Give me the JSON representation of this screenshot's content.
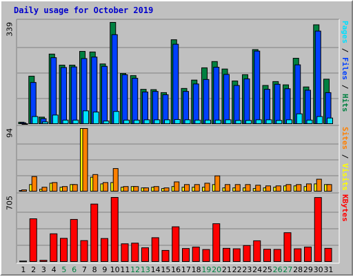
{
  "title": "Daily usage for October 2019",
  "colors": {
    "background": "#c0c0c0",
    "hits": "#008040",
    "files": "#0040ff",
    "pages": "#00e0ff",
    "visits": "#ffff00",
    "sites": "#ff8000",
    "kbytes": "#ff0000",
    "weekday_label": "#000000",
    "weekend_label": "#008040",
    "title": "#0000cc"
  },
  "chart_data": [
    {
      "type": "bar",
      "panel": "top",
      "ymax_label": "339",
      "ylim": [
        0,
        339
      ],
      "categories": [
        "1",
        "2",
        "3",
        "4",
        "5",
        "6",
        "7",
        "8",
        "9",
        "10",
        "11",
        "12",
        "13",
        "14",
        "15",
        "16",
        "17",
        "18",
        "19",
        "20",
        "21",
        "22",
        "23",
        "24",
        "25",
        "26",
        "27",
        "28",
        "29",
        "30",
        "31"
      ],
      "series": [
        {
          "name": "Hits",
          "values": [
            5,
            159,
            22,
            233,
            196,
            196,
            242,
            240,
            200,
            339,
            168,
            161,
            115,
            114,
            104,
            281,
            118,
            146,
            187,
            208,
            183,
            143,
            164,
            248,
            128,
            141,
            130,
            219,
            123,
            331,
            149
          ]
        },
        {
          "name": "Files",
          "values": [
            3,
            138,
            17,
            221,
            188,
            190,
            218,
            223,
            192,
            298,
            164,
            152,
            106,
            108,
            97,
            266,
            108,
            133,
            148,
            189,
            165,
            128,
            150,
            243,
            115,
            132,
            117,
            197,
            112,
            310,
            104
          ]
        },
        {
          "name": "Pages",
          "values": [
            0,
            24,
            6,
            29,
            12,
            12,
            43,
            39,
            9,
            41,
            12,
            12,
            13,
            13,
            13,
            14,
            13,
            12,
            12,
            12,
            13,
            11,
            11,
            13,
            13,
            11,
            13,
            33,
            12,
            24,
            19
          ]
        }
      ],
      "legend_words": [
        "Pages",
        "Files",
        "Hits"
      ]
    },
    {
      "type": "bar",
      "panel": "middle",
      "ymax_label": "94",
      "ylim": [
        0,
        94
      ],
      "categories": [
        "1",
        "2",
        "3",
        "4",
        "5",
        "6",
        "7",
        "8",
        "9",
        "10",
        "11",
        "12",
        "13",
        "14",
        "15",
        "16",
        "17",
        "18",
        "19",
        "20",
        "21",
        "22",
        "23",
        "24",
        "25",
        "26",
        "27",
        "28",
        "29",
        "30",
        "31"
      ],
      "series": [
        {
          "name": "Visits",
          "values": [
            1,
            10,
            3,
            12,
            6,
            10,
            94,
            21,
            11,
            13,
            6,
            7,
            5,
            6,
            4,
            7,
            6,
            6,
            6,
            10,
            5,
            5,
            5,
            4,
            5,
            6,
            8,
            8,
            7,
            11,
            10
          ]
        },
        {
          "name": "Sites",
          "values": [
            2,
            22,
            6,
            13,
            7,
            10,
            94,
            25,
            13,
            34,
            7,
            7,
            5,
            7,
            5,
            14,
            10,
            10,
            12,
            23,
            10,
            10,
            10,
            9,
            8,
            8,
            10,
            10,
            11,
            18,
            10
          ]
        }
      ],
      "legend_words": [
        "Sites",
        "Visits"
      ]
    },
    {
      "type": "bar",
      "panel": "bottom",
      "ymax_label": "705",
      "ylim": [
        0,
        705
      ],
      "categories": [
        "1",
        "2",
        "3",
        "4",
        "5",
        "6",
        "7",
        "8",
        "9",
        "10",
        "11",
        "12",
        "13",
        "14",
        "15",
        "16",
        "17",
        "18",
        "19",
        "20",
        "21",
        "22",
        "23",
        "24",
        "25",
        "26",
        "27",
        "28",
        "29",
        "30",
        "31"
      ],
      "series": [
        {
          "name": "KBytes",
          "values": [
            5,
            470,
            13,
            305,
            255,
            463,
            230,
            632,
            253,
            705,
            195,
            202,
            151,
            262,
            122,
            382,
            143,
            159,
            132,
            416,
            145,
            140,
            176,
            228,
            135,
            133,
            317,
            140,
            159,
            704,
            145
          ]
        }
      ],
      "legend_words": [
        "KBytes"
      ]
    }
  ],
  "weekend_days": [
    "5",
    "6",
    "12",
    "13",
    "19",
    "20",
    "26",
    "27"
  ]
}
